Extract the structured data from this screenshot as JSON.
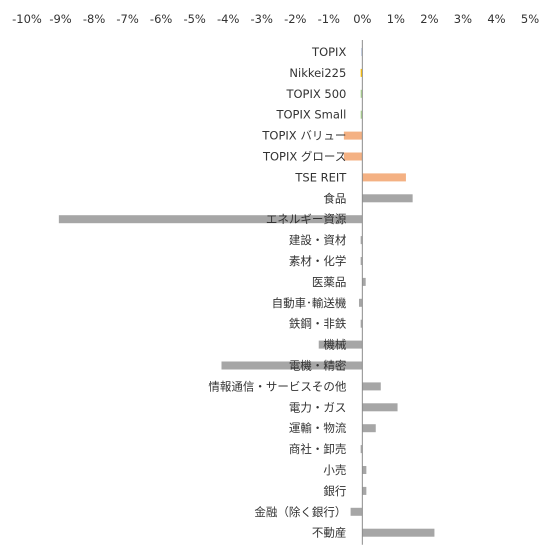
{
  "chart_data": {
    "type": "bar",
    "orientation": "horizontal",
    "title": "",
    "xlabel": "",
    "ylabel": "",
    "xlim": [
      -10,
      5
    ],
    "tick_step": 1,
    "tick_labels": [
      "-10%",
      "-9%",
      "-8%",
      "-7%",
      "-6%",
      "-5%",
      "-4%",
      "-3%",
      "-2%",
      "-1%",
      "0%",
      "1%",
      "2%",
      "3%",
      "4%",
      "5%"
    ],
    "grid": false,
    "legend": "none",
    "categories": [
      "TOPIX",
      "Nikkei225",
      "TOPIX 500",
      "TOPIX Small",
      "TOPIX バリュー",
      "TOPIX グロース",
      "TSE REIT",
      "食品",
      "エネルギー資源",
      "建設・資材",
      "素材・化学",
      "医薬品",
      "自動車･輸送機",
      "鉄鋼・非鉄",
      "機械",
      "電機・精密",
      "情報通信・サービスその他",
      "電力・ガス",
      "運輸・物流",
      "商社・卸売",
      "小売",
      "銀行",
      "金融（除く銀行）",
      "不動産"
    ],
    "values": [
      -0.02,
      -0.05,
      -0.05,
      -0.05,
      -0.55,
      -0.55,
      1.3,
      1.5,
      -9.05,
      -0.05,
      -0.05,
      0.1,
      -0.1,
      -0.05,
      -1.3,
      -4.2,
      0.55,
      1.05,
      0.4,
      -0.05,
      0.12,
      0.12,
      -0.35,
      2.15
    ],
    "colors": [
      "#4472C4",
      "#FFC000",
      "#A9D18E",
      "#A9D18E",
      "#F4B183",
      "#F4B183",
      "#F4B183",
      "#A6A6A6",
      "#A6A6A6",
      "#A6A6A6",
      "#A6A6A6",
      "#A6A6A6",
      "#A6A6A6",
      "#A6A6A6",
      "#A6A6A6",
      "#A6A6A6",
      "#A6A6A6",
      "#A6A6A6",
      "#A6A6A6",
      "#A6A6A6",
      "#A6A6A6",
      "#A6A6A6",
      "#A6A6A6",
      "#A6A6A6"
    ]
  }
}
